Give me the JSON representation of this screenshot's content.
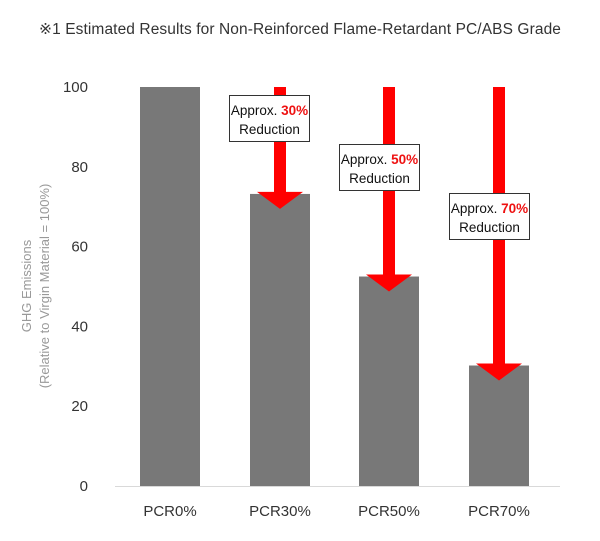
{
  "chart_data": {
    "type": "bar",
    "title": "※1 Estimated Results for Non-Reinforced Flame-Retardant PC/ABS Grade",
    "ylabel_line1": "GHG Emissions",
    "ylabel_line2": "(Relative to Virgin Material = 100%)",
    "xlabel": "",
    "ylim": [
      0,
      100
    ],
    "yticks": [
      0,
      20,
      40,
      60,
      80,
      100
    ],
    "grid": false,
    "categories": [
      "PCR0%",
      "PCR30%",
      "PCR50%",
      "PCR70%"
    ],
    "values": [
      100,
      73.2,
      52.5,
      30.2
    ],
    "annotations": [
      {
        "category": "PCR30%",
        "prefix": "Approx. ",
        "percent": "30%",
        "suffix": "Reduction"
      },
      {
        "category": "PCR50%",
        "prefix": "Approx. ",
        "percent": "50%",
        "suffix": "Reduction"
      },
      {
        "category": "PCR70%",
        "prefix": "Approx. ",
        "percent": "70%",
        "suffix": "Reduction"
      }
    ],
    "colors": {
      "bar": "#787878",
      "arrow": "#ff0000",
      "percent_text": "#ee1111",
      "axis": "#d9d9d9"
    }
  }
}
